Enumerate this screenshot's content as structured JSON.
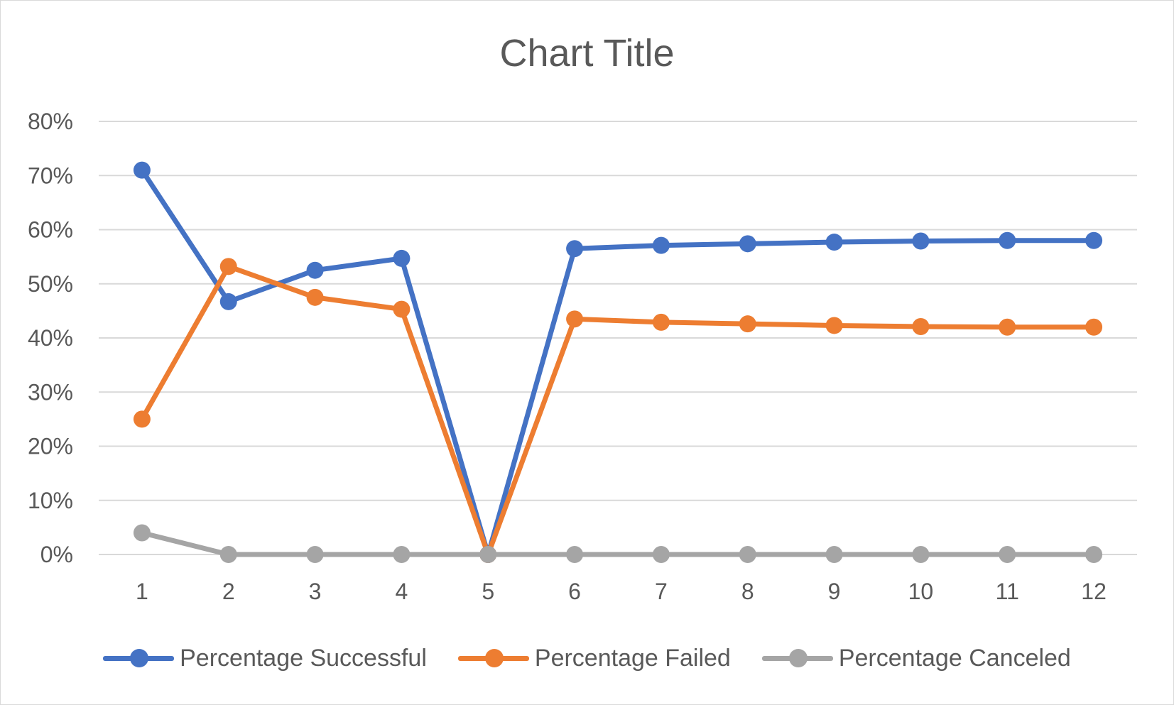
{
  "chart_data": {
    "type": "line",
    "title": "Chart Title",
    "xlabel": "",
    "ylabel": "",
    "categories": [
      "1",
      "2",
      "3",
      "4",
      "5",
      "6",
      "7",
      "8",
      "9",
      "10",
      "11",
      "12"
    ],
    "ylim": [
      0,
      0.8
    ],
    "yticks": [
      "0%",
      "10%",
      "20%",
      "30%",
      "40%",
      "50%",
      "60%",
      "70%",
      "80%"
    ],
    "grid": true,
    "legend_position": "bottom",
    "series": [
      {
        "name": "Percentage Successful",
        "color": "#4472c4",
        "values": [
          0.71,
          0.467,
          0.525,
          0.547,
          0.0,
          0.565,
          0.571,
          0.574,
          0.577,
          0.579,
          0.58,
          0.58
        ]
      },
      {
        "name": "Percentage Failed",
        "color": "#ed7d31",
        "values": [
          0.25,
          0.532,
          0.475,
          0.453,
          0.0,
          0.435,
          0.429,
          0.426,
          0.423,
          0.421,
          0.42,
          0.42
        ]
      },
      {
        "name": "Percentage Canceled",
        "color": "#a5a5a5",
        "values": [
          0.04,
          0.0,
          0.0,
          0.0,
          0.0,
          0.0,
          0.0,
          0.0,
          0.0,
          0.0,
          0.0,
          0.0
        ]
      }
    ]
  }
}
